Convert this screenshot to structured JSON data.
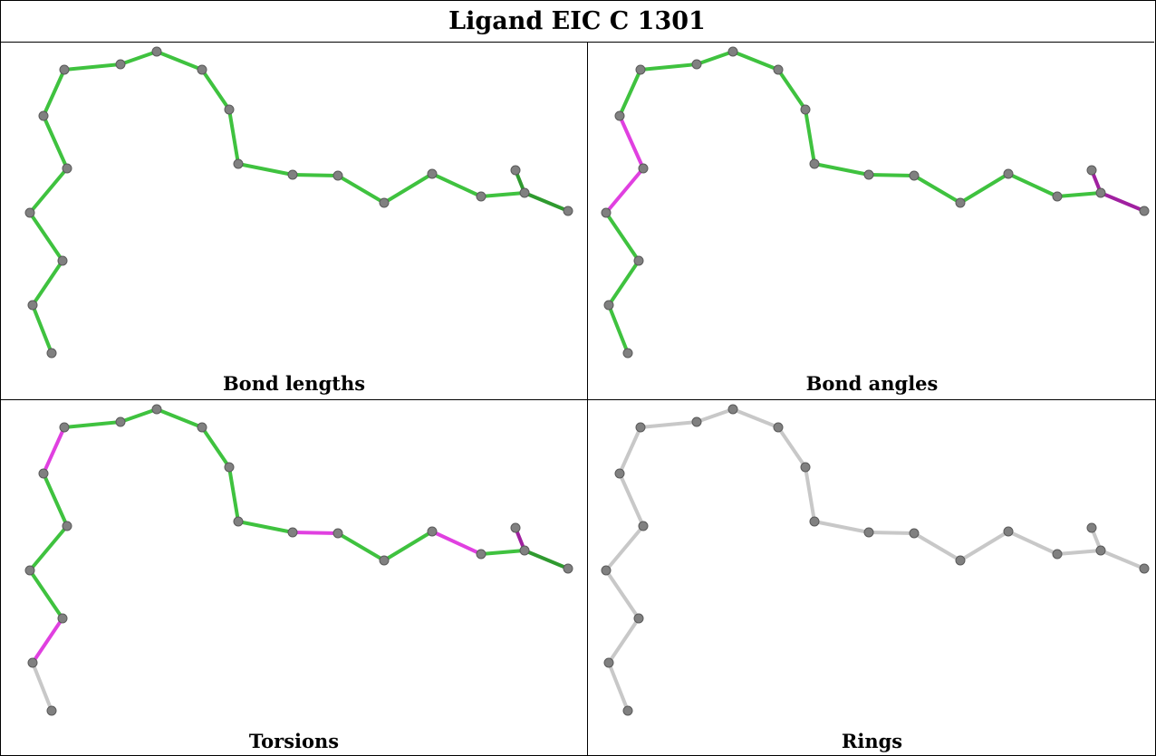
{
  "title": "Ligand EIC C 1301",
  "colors": {
    "ok": "#3fc23f",
    "ok_dark": "#2f9a2f",
    "outlier": "#e040e0",
    "outlier_dark": "#a020a0",
    "neutral": "#c8c8c8",
    "atom": "#808080"
  },
  "panels": [
    {
      "id": "bond-lengths",
      "caption": "Bond lengths",
      "bond_status": [
        "ok",
        "ok",
        "ok",
        "ok",
        "ok",
        "ok",
        "ok",
        "ok",
        "ok",
        "ok",
        "ok",
        "ok",
        "ok",
        "ok",
        "ok",
        "ok",
        "ok",
        "ok",
        "ok",
        "ok",
        "ok"
      ]
    },
    {
      "id": "bond-angles",
      "caption": "Bond angles",
      "bond_status": [
        "ok",
        "ok",
        "ok",
        "outlier",
        "outlier",
        "ok",
        "ok",
        "ok",
        "ok",
        "ok",
        "ok",
        "ok",
        "ok",
        "ok",
        "ok",
        "ok",
        "ok",
        "outlier",
        "outlier",
        "outlier",
        "outlier"
      ]
    },
    {
      "id": "torsions",
      "caption": "Torsions",
      "bond_status": [
        "neutral",
        "outlier",
        "ok",
        "ok",
        "ok",
        "outlier",
        "ok",
        "ok",
        "ok",
        "ok",
        "ok",
        "ok",
        "outlier",
        "ok",
        "ok",
        "outlier",
        "ok",
        "outlier",
        "ok",
        "neutral",
        "ok"
      ]
    },
    {
      "id": "rings",
      "caption": "Rings",
      "bond_status": [
        "neutral",
        "neutral",
        "neutral",
        "neutral",
        "neutral",
        "neutral",
        "neutral",
        "neutral",
        "neutral",
        "neutral",
        "neutral",
        "neutral",
        "neutral",
        "neutral",
        "neutral",
        "neutral",
        "neutral",
        "neutral",
        "neutral",
        "neutral",
        "neutral"
      ]
    }
  ]
}
